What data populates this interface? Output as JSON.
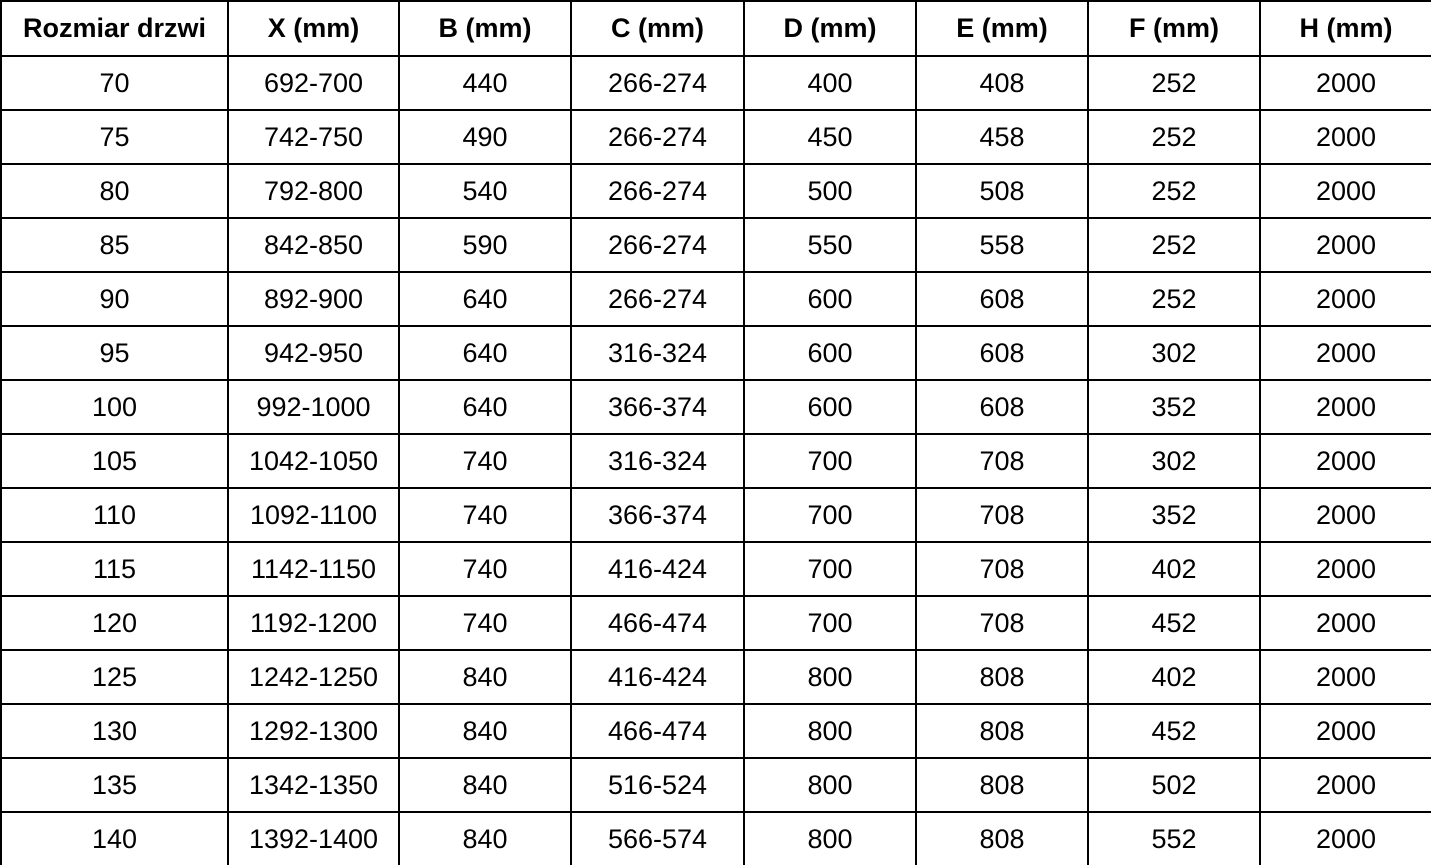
{
  "colors": {
    "background": "#ffffff",
    "border": "#000000",
    "text": "#000000"
  },
  "chart_data": {
    "type": "table",
    "title": "",
    "columns": [
      "Rozmiar drzwi",
      "X (mm)",
      "B (mm)",
      "C (mm)",
      "D (mm)",
      "E (mm)",
      "F (mm)",
      "H (mm)"
    ],
    "rows": [
      [
        "70",
        "692-700",
        "440",
        "266-274",
        "400",
        "408",
        "252",
        "2000"
      ],
      [
        "75",
        "742-750",
        "490",
        "266-274",
        "450",
        "458",
        "252",
        "2000"
      ],
      [
        "80",
        "792-800",
        "540",
        "266-274",
        "500",
        "508",
        "252",
        "2000"
      ],
      [
        "85",
        "842-850",
        "590",
        "266-274",
        "550",
        "558",
        "252",
        "2000"
      ],
      [
        "90",
        "892-900",
        "640",
        "266-274",
        "600",
        "608",
        "252",
        "2000"
      ],
      [
        "95",
        "942-950",
        "640",
        "316-324",
        "600",
        "608",
        "302",
        "2000"
      ],
      [
        "100",
        "992-1000",
        "640",
        "366-374",
        "600",
        "608",
        "352",
        "2000"
      ],
      [
        "105",
        "1042-1050",
        "740",
        "316-324",
        "700",
        "708",
        "302",
        "2000"
      ],
      [
        "110",
        "1092-1100",
        "740",
        "366-374",
        "700",
        "708",
        "352",
        "2000"
      ],
      [
        "115",
        "1142-1150",
        "740",
        "416-424",
        "700",
        "708",
        "402",
        "2000"
      ],
      [
        "120",
        "1192-1200",
        "740",
        "466-474",
        "700",
        "708",
        "452",
        "2000"
      ],
      [
        "125",
        "1242-1250",
        "840",
        "416-424",
        "800",
        "808",
        "402",
        "2000"
      ],
      [
        "130",
        "1292-1300",
        "840",
        "466-474",
        "800",
        "808",
        "452",
        "2000"
      ],
      [
        "135",
        "1342-1350",
        "840",
        "516-524",
        "800",
        "808",
        "502",
        "2000"
      ],
      [
        "140",
        "1392-1400",
        "840",
        "566-574",
        "800",
        "808",
        "552",
        "2000"
      ]
    ]
  }
}
